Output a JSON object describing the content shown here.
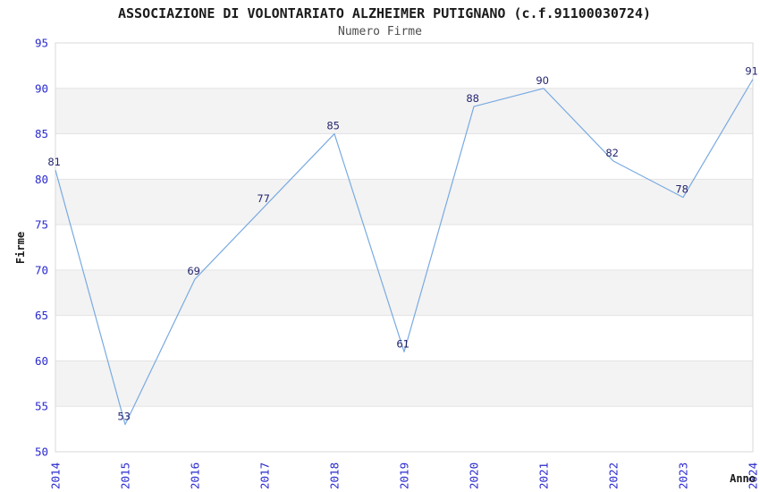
{
  "chart_data": {
    "type": "line",
    "title": "ASSOCIAZIONE DI VOLONTARIATO ALZHEIMER PUTIGNANO (c.f.91100030724)",
    "subtitle": "Numero Firme",
    "xlabel": "Anno",
    "ylabel": "Firme",
    "categories": [
      "2014",
      "2015",
      "2016",
      "2017",
      "2018",
      "2019",
      "2020",
      "2021",
      "2022",
      "2023",
      "2024"
    ],
    "series": [
      {
        "name": "Numero Firme",
        "values": [
          81,
          53,
          69,
          77,
          85,
          61,
          88,
          90,
          82,
          78,
          91
        ]
      }
    ],
    "ylim": [
      50,
      95
    ],
    "ytick_step": 5,
    "yticks": [
      50,
      55,
      60,
      65,
      70,
      75,
      80,
      85,
      90,
      95
    ],
    "grid": "horizontal-only",
    "legend_position": "none",
    "point_labels_visible": true,
    "colors": {
      "line": "#79aae1",
      "axis_tick_label": "#2828d0",
      "point_label": "#252570",
      "band_fill": "#f3f3f3",
      "gridline": "#e3e3e3",
      "plot_border": "#d8d8d8",
      "title_text": "#1a1a1a",
      "subtitle_text": "#4d4d4d",
      "axis_title_text": "#1a1a1a",
      "background": "#ffffff"
    }
  }
}
